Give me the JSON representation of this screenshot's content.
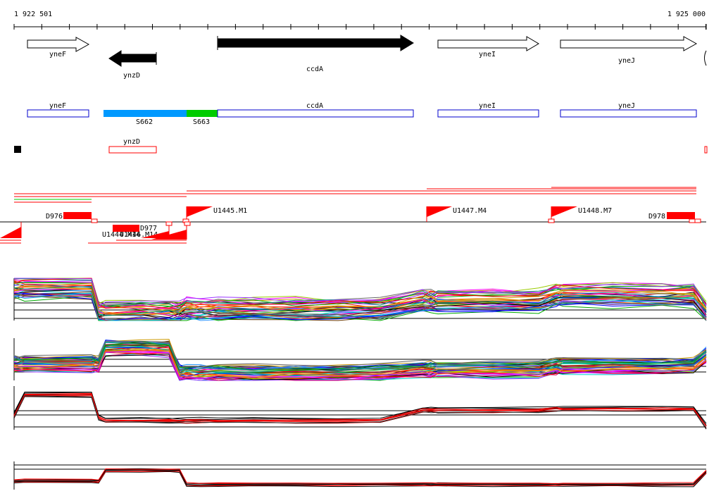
{
  "coordinates": {
    "start_label": "1 922 501",
    "end_label": "1 925 000"
  },
  "genes": [
    {
      "name": "yneF",
      "strand": "+"
    },
    {
      "name": "ynzD",
      "strand": "-"
    },
    {
      "name": "ccdA",
      "strand": "+"
    },
    {
      "name": "yneI",
      "strand": "+"
    },
    {
      "name": "yneJ",
      "strand": "+"
    }
  ],
  "transcript_track": [
    {
      "label": "yneF"
    },
    {
      "label": "S662"
    },
    {
      "label": "S663"
    },
    {
      "label": "ccdA"
    },
    {
      "label": "yneI"
    },
    {
      "label": "yneJ"
    }
  ],
  "ncrna_track": [
    {
      "label": "ynzD"
    }
  ],
  "upshifts": [
    {
      "label": "U1445.M1"
    },
    {
      "label": "U1447.M4"
    },
    {
      "label": "U1448.M7"
    },
    {
      "label": "U1444.M14"
    },
    {
      "label": "U1446.M14"
    }
  ],
  "downshifts": [
    {
      "label": "D976"
    },
    {
      "label": "D977"
    },
    {
      "label": "D978"
    }
  ],
  "colors": {
    "gene_fill_strong": "#000000",
    "gene_fill_plain": "#ffffff",
    "transcript_outline": "#0000cc",
    "segment_blue": "#0099ff",
    "segment_green": "#00cc00",
    "shift_red": "#ff0000",
    "line_black": "#000000"
  }
}
